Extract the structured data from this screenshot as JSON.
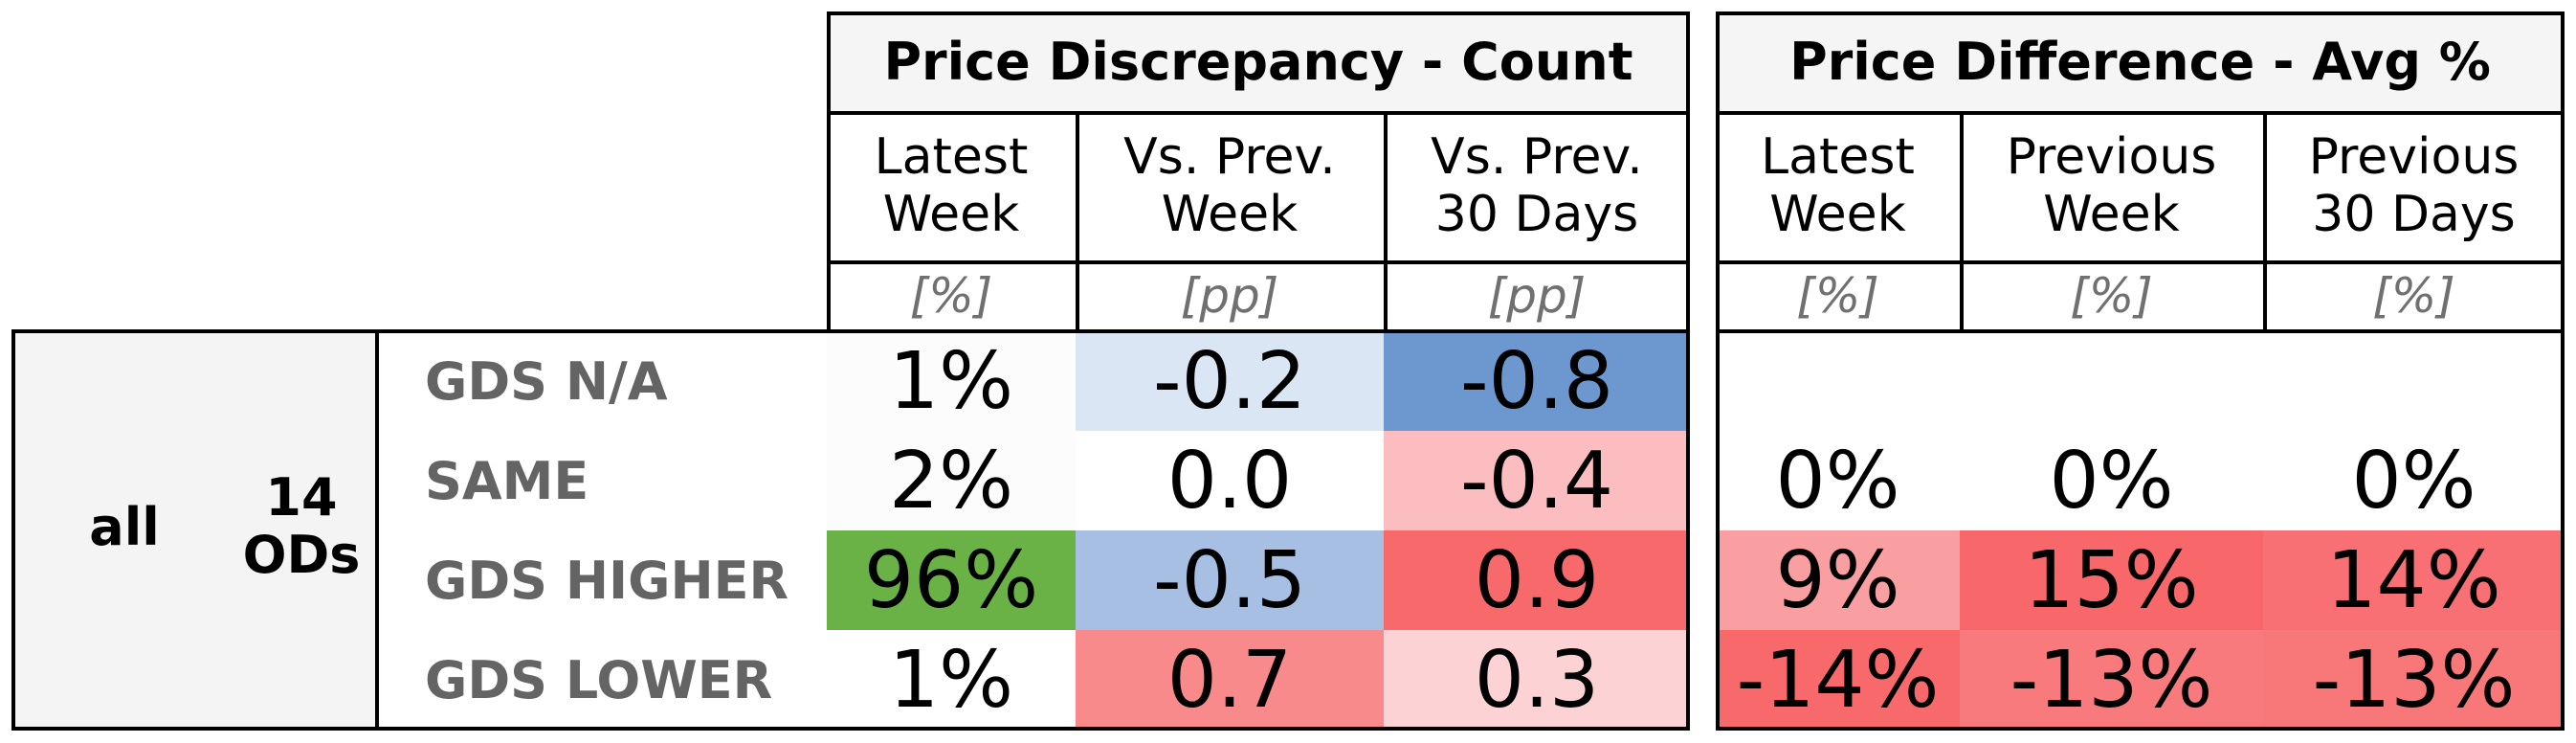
{
  "table": {
    "groups": [
      {
        "title": "Price Discrepancy - Count",
        "columns": [
          {
            "label": "Latest\nWeek",
            "unit": "[%]"
          },
          {
            "label": "Vs. Prev.\nWeek",
            "unit": "[pp]"
          },
          {
            "label": "Vs. Prev.\n30 Days",
            "unit": "[pp]"
          }
        ]
      },
      {
        "title": "Price Difference - Avg %",
        "columns": [
          {
            "label": "Latest\nWeek",
            "unit": "[%]"
          },
          {
            "label": "Previous\nWeek",
            "unit": "[%]"
          },
          {
            "label": "Previous\n30 Days",
            "unit": "[%]"
          }
        ]
      }
    ],
    "segment": "all",
    "od_count": "14\nODs",
    "rows": [
      {
        "label": "GDS N/A",
        "count": [
          "1%",
          "-0.2",
          "-0.8"
        ],
        "count_colors": [
          "#fbfcfb",
          "#dae6f3",
          "#6c97cf"
        ],
        "avg": [
          "",
          "",
          ""
        ],
        "avg_colors": [
          "#ffffff",
          "#ffffff",
          "#ffffff"
        ]
      },
      {
        "label": "SAME",
        "count": [
          "2%",
          "0.0",
          "-0.4"
        ],
        "count_colors": [
          "#fbfcfb",
          "#ffffff",
          "#fbbdbf"
        ],
        "avg": [
          "0%",
          "0%",
          "0%"
        ],
        "avg_colors": [
          "#ffffff",
          "#ffffff",
          "#ffffff"
        ]
      },
      {
        "label": "GDS HIGHER",
        "count": [
          "96%",
          "-0.5",
          "0.9"
        ],
        "count_colors": [
          "#6ab245",
          "#a6bfe2",
          "#f8696b"
        ],
        "avg": [
          "9%",
          "15%",
          "14%"
        ],
        "avg_colors": [
          "#fa9fa1",
          "#f8686a",
          "#f87073"
        ]
      },
      {
        "label": "GDS LOWER",
        "count": [
          "1%",
          "0.7",
          "0.3"
        ],
        "count_colors": [
          "#ffffff",
          "#f88a8c",
          "#fcd2d4"
        ],
        "avg": [
          "-14%",
          "-13%",
          "-13%"
        ],
        "avg_colors": [
          "#f8696b",
          "#f87a7c",
          "#f87779"
        ]
      }
    ]
  },
  "chart_data": {
    "type": "table",
    "column_groups": [
      "Price Discrepancy - Count",
      "Price Difference - Avg %"
    ],
    "columns": [
      "Latest Week",
      "Vs. Prev. Week",
      "Vs. Prev. 30 Days",
      "Latest Week",
      "Previous Week",
      "Previous 30 Days"
    ],
    "units": [
      "[%]",
      "[pp]",
      "[pp]",
      "[%]",
      "[%]",
      "[%]"
    ],
    "row_labels": [
      "GDS N/A",
      "SAME",
      "GDS HIGHER",
      "GDS LOWER"
    ],
    "values": [
      [
        "1%",
        "-0.2",
        "-0.8",
        "",
        "",
        ""
      ],
      [
        "2%",
        "0.0",
        "-0.4",
        "0%",
        "0%",
        "0%"
      ],
      [
        "96%",
        "-0.5",
        "0.9",
        "9%",
        "15%",
        "14%"
      ],
      [
        "1%",
        "0.7",
        "0.3",
        "-14%",
        "-13%",
        "-13%"
      ]
    ]
  }
}
